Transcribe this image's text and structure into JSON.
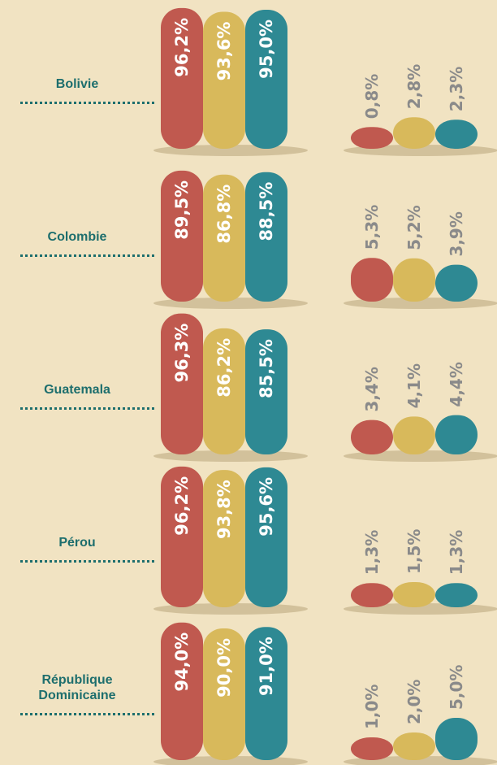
{
  "chart_data": {
    "type": "bar",
    "categories": [
      "Bolivie",
      "Colombie",
      "Guatemala",
      "Pérou",
      "République Dominicaine"
    ],
    "groups": [
      {
        "series": [
          {
            "color": "#c0594f",
            "values": [
              96.2,
              89.5,
              96.3,
              96.2,
              94.0
            ],
            "value_labels": [
              "96,2%",
              "89,5%",
              "96,3%",
              "96,2%",
              "94,0%"
            ]
          },
          {
            "color": "#d8b95b",
            "values": [
              93.6,
              86.8,
              86.2,
              93.8,
              90.0
            ],
            "value_labels": [
              "93,6%",
              "86,8%",
              "86,2%",
              "93,8%",
              "90,0%"
            ]
          },
          {
            "color": "#2e8993",
            "values": [
              95.0,
              88.5,
              85.5,
              95.6,
              91.0
            ],
            "value_labels": [
              "95,0%",
              "88,5%",
              "85,5%",
              "95,6%",
              "91,0%"
            ]
          }
        ]
      },
      {
        "series": [
          {
            "color": "#c0594f",
            "values": [
              0.8,
              5.3,
              3.4,
              1.3,
              1.0
            ],
            "value_labels": [
              "0,8%",
              "5,3%",
              "3,4%",
              "1,3%",
              "1,0%"
            ]
          },
          {
            "color": "#d8b95b",
            "values": [
              2.8,
              5.2,
              4.1,
              1.5,
              2.0
            ],
            "value_labels": [
              "2,8%",
              "5,2%",
              "4,1%",
              "1,5%",
              "2,0%"
            ]
          },
          {
            "color": "#2e8993",
            "values": [
              2.3,
              3.9,
              4.4,
              1.3,
              5.0
            ],
            "value_labels": [
              "2,3%",
              "3,9%",
              "4,4%",
              "1,3%",
              "5,0%"
            ]
          }
        ]
      }
    ]
  }
}
